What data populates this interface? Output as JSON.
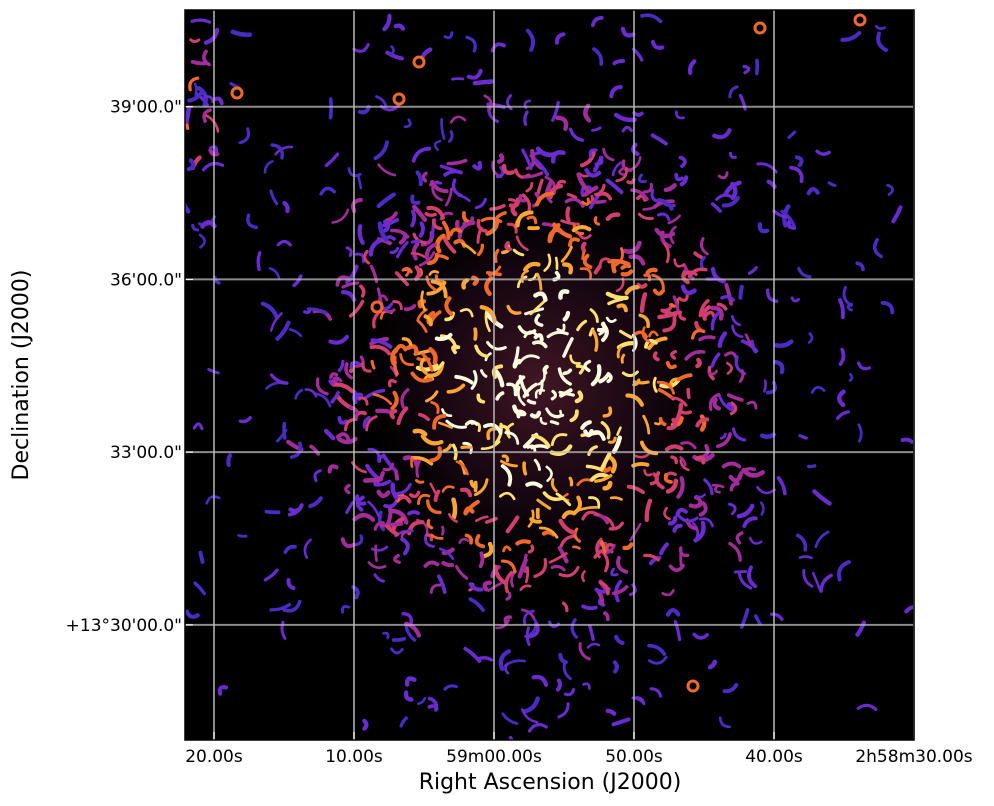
{
  "chart_data": {
    "type": "image",
    "xlabel": "Right Ascension (J2000)",
    "ylabel": "Declination (J2000)",
    "xlim": [
      82.07,
      30
    ],
    "ylim": [
      28.0,
      40.68
    ],
    "xticks": [
      {
        "value": 80,
        "label": "20.00s"
      },
      {
        "value": 70,
        "label": "10.00s"
      },
      {
        "value": 60,
        "label": "59m00.00s"
      },
      {
        "value": 50,
        "label": "50.00s"
      },
      {
        "value": 40,
        "label": "40.00s"
      },
      {
        "value": 30,
        "label": "2h58m30.00s"
      }
    ],
    "yticks": [
      {
        "value": 39,
        "label": "39'00.0\""
      },
      {
        "value": 36,
        "label": "36'00.0\""
      },
      {
        "value": 33,
        "label": "33'00.0\""
      },
      {
        "value": 30,
        "label": "+13°30'00.0\""
      }
    ],
    "grid": true
  }
}
